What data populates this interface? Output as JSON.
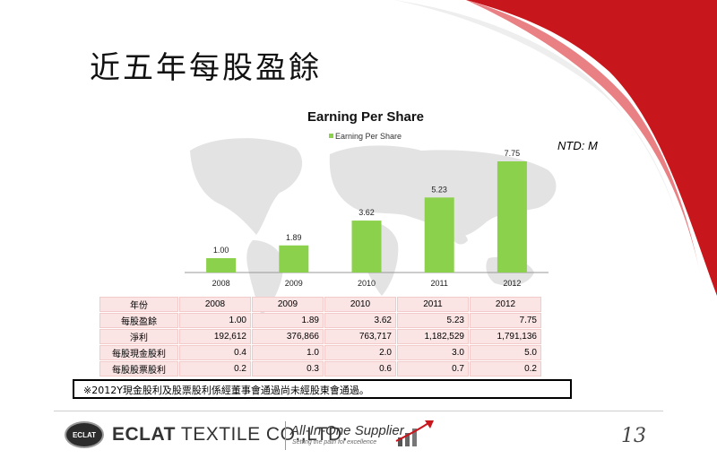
{
  "slide": {
    "title": "近五年每股盈餘",
    "unit": "NTD: M",
    "note": "※2012Y現金股利及股票股利係經董事會通過尚未經股東會通過。",
    "page_number": "13"
  },
  "footer": {
    "logo_text": "ECLAT",
    "company_bold": "ECLAT",
    "company_rest": " TEXTILE CO.,LTD.",
    "slogan": "All-In-One Supplier",
    "slogan_sub": "Setting the path for excellence"
  },
  "table": {
    "header_label": "年份",
    "years": [
      "2008",
      "2009",
      "2010",
      "2011",
      "2012"
    ],
    "rows": [
      {
        "label": "每股盈餘",
        "values": [
          "1.00",
          "1.89",
          "3.62",
          "5.23",
          "7.75"
        ]
      },
      {
        "label": "淨利",
        "values": [
          "192,612",
          "376,866",
          "763,717",
          "1,182,529",
          "1,791,136"
        ]
      },
      {
        "label": "每股現金股利",
        "values": [
          "0.4",
          "1.0",
          "2.0",
          "3.0",
          "5.0"
        ]
      },
      {
        "label": "每股股票股利",
        "values": [
          "0.2",
          "0.3",
          "0.6",
          "0.7",
          "0.2"
        ]
      }
    ]
  },
  "chart_data": {
    "type": "bar",
    "title": "Earning Per Share",
    "categories": [
      "2008",
      "2009",
      "2010",
      "2011",
      "2012"
    ],
    "series": [
      {
        "name": "Earning Per Share",
        "values": [
          1.0,
          1.89,
          3.62,
          5.23,
          7.75
        ]
      }
    ],
    "data_labels": [
      "1.00",
      "1.89",
      "3.62",
      "5.23",
      "7.75"
    ],
    "ylim": [
      0,
      8.5
    ],
    "grid": false,
    "legend": "top-center",
    "color": "#8cd14b"
  }
}
